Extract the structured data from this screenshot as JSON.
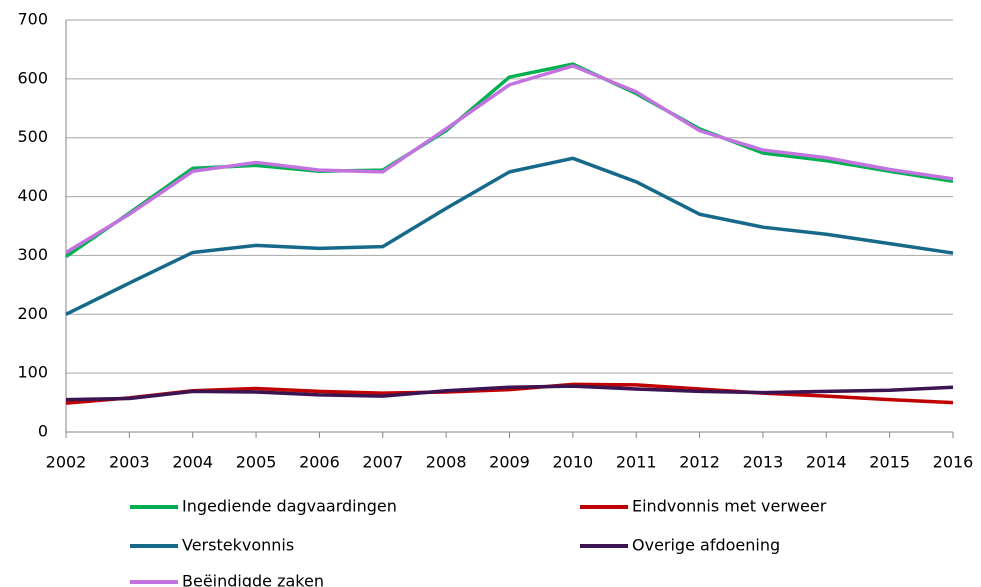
{
  "chart_data": {
    "type": "line",
    "x": [
      2002,
      2003,
      2004,
      2005,
      2006,
      2007,
      2008,
      2009,
      2010,
      2011,
      2012,
      2013,
      2014,
      2015,
      2016
    ],
    "xlim": [
      2002,
      2016
    ],
    "xticks": [
      2002,
      2003,
      2004,
      2005,
      2006,
      2007,
      2008,
      2009,
      2010,
      2011,
      2012,
      2013,
      2014,
      2015,
      2016
    ],
    "ylim": [
      0,
      700
    ],
    "yticks": [
      0,
      100,
      200,
      300,
      400,
      500,
      600,
      700
    ],
    "grid": true,
    "legend": "bottom",
    "series": [
      {
        "name": "Ingediende dagvaardingen",
        "color": "#00b050",
        "values": [
          298,
          372,
          448,
          453,
          443,
          445,
          512,
          603,
          625,
          575,
          515,
          474,
          461,
          443,
          426
        ]
      },
      {
        "name": "Eindvonnis met verweer",
        "color": "#c00000",
        "values": [
          49,
          58,
          70,
          74,
          69,
          66,
          68,
          72,
          81,
          80,
          73,
          66,
          61,
          55,
          50
        ]
      },
      {
        "name": "Verstekvonnis",
        "color": "#17698a",
        "values": [
          200,
          253,
          305,
          317,
          312,
          315,
          380,
          442,
          465,
          425,
          370,
          348,
          336,
          320,
          304
        ]
      },
      {
        "name": "Overige afdoening",
        "color": "#3d1452",
        "values": [
          55,
          57,
          69,
          68,
          63,
          61,
          70,
          76,
          78,
          73,
          69,
          67,
          69,
          71,
          76
        ]
      },
      {
        "name": "Beëindigde zaken",
        "color": "#c373e0",
        "values": [
          305,
          370,
          443,
          458,
          445,
          442,
          515,
          590,
          622,
          578,
          512,
          479,
          466,
          446,
          430
        ]
      }
    ]
  }
}
